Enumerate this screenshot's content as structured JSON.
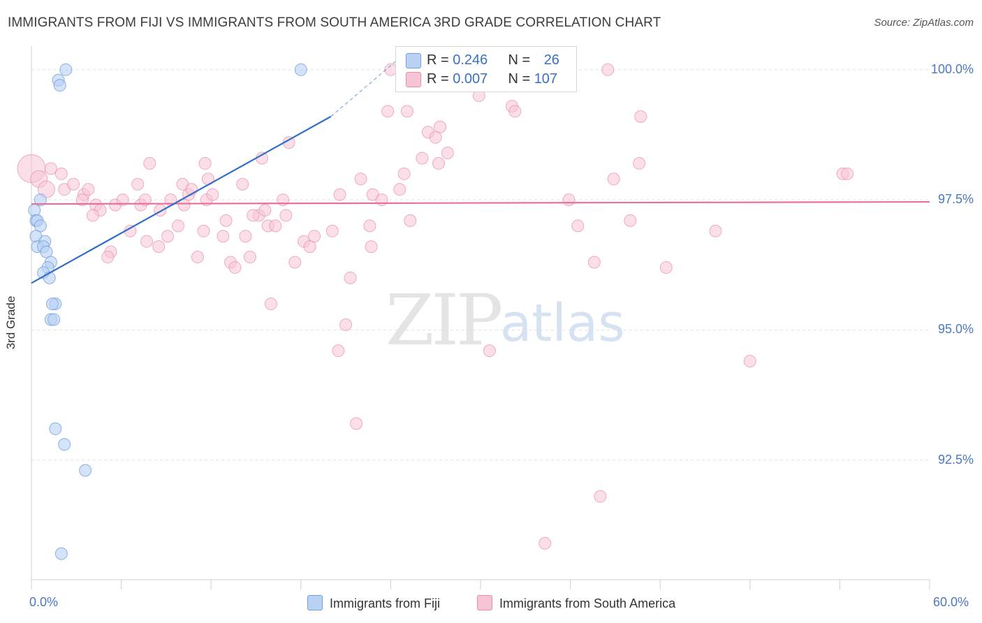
{
  "title": "IMMIGRANTS FROM FIJI VS IMMIGRANTS FROM SOUTH AMERICA 3RD GRADE CORRELATION CHART",
  "source": "Source: ZipAtlas.com",
  "watermark": {
    "zip": "ZIP",
    "atlas": "atlas"
  },
  "colors": {
    "fiji": "#6fa0e0",
    "fiji_fill": "#b9d1f3",
    "sa": "#e98cab",
    "sa_fill": "#f7c4d5",
    "fiji_line": "#2f6fc8",
    "sa_line": "#e8719c",
    "axis_text": "#4a78c2"
  },
  "legend_top": {
    "fiji": {
      "r_label": "R = ",
      "r_value": "0.246",
      "n_label": "N = ",
      "n_value": "26"
    },
    "sa": {
      "r_label": "R = ",
      "r_value": "0.007",
      "n_label": "N = ",
      "n_value": "107"
    }
  },
  "legend_bottom": {
    "fiji": "Immigrants from Fiji",
    "sa": "Immigrants from South America"
  },
  "chart_data": {
    "type": "scatter",
    "title": "IMMIGRANTS FROM FIJI VS IMMIGRANTS FROM SOUTH AMERICA 3RD GRADE CORRELATION CHART",
    "xlabel": "",
    "ylabel": "3rd Grade",
    "xlim": [
      0,
      60
    ],
    "ylim": [
      90.2,
      100.4
    ],
    "x_tick_labels": [
      "0.0%",
      "60.0%"
    ],
    "y_ticks": [
      92.5,
      95.0,
      97.5,
      100.0
    ],
    "y_tick_labels": [
      "92.5%",
      "95.0%",
      "97.5%",
      "100.0%"
    ],
    "grid": true,
    "legend_position": "top-center",
    "series": [
      {
        "name": "Immigrants from Fiji",
        "trend": {
          "x": [
            0,
            20
          ],
          "y": [
            95.9,
            99.1
          ]
        },
        "trend_dashed": {
          "x": [
            20,
            24.5
          ],
          "y": [
            99.1,
            100.2
          ]
        },
        "points": [
          [
            2.3,
            100.0
          ],
          [
            1.8,
            99.8
          ],
          [
            1.9,
            99.7
          ],
          [
            18.0,
            100.0
          ],
          [
            0.6,
            97.5
          ],
          [
            0.2,
            97.3
          ],
          [
            0.3,
            97.1
          ],
          [
            0.4,
            97.1
          ],
          [
            0.6,
            97.0
          ],
          [
            0.3,
            96.8
          ],
          [
            0.9,
            96.7
          ],
          [
            0.4,
            96.6
          ],
          [
            0.8,
            96.6
          ],
          [
            1.0,
            96.5
          ],
          [
            1.3,
            96.3
          ],
          [
            1.1,
            96.2
          ],
          [
            0.8,
            96.1
          ],
          [
            1.2,
            96.0
          ],
          [
            1.6,
            95.5
          ],
          [
            1.4,
            95.5
          ],
          [
            1.3,
            95.2
          ],
          [
            1.5,
            95.2
          ],
          [
            1.6,
            93.1
          ],
          [
            2.2,
            92.8
          ],
          [
            3.6,
            92.3
          ],
          [
            2.0,
            90.7
          ]
        ]
      },
      {
        "name": "Immigrants from South America",
        "trend": {
          "x": [
            0,
            60
          ],
          "y": [
            97.42,
            97.46
          ]
        },
        "points": [
          [
            0.0,
            98.1
          ],
          [
            0.5,
            97.9
          ],
          [
            1.0,
            97.7
          ],
          [
            1.3,
            98.1
          ],
          [
            2.0,
            98.0
          ],
          [
            2.2,
            97.7
          ],
          [
            2.8,
            97.8
          ],
          [
            3.5,
            97.6
          ],
          [
            3.8,
            97.7
          ],
          [
            3.4,
            97.5
          ],
          [
            4.3,
            97.4
          ],
          [
            4.6,
            97.3
          ],
          [
            4.1,
            97.2
          ],
          [
            5.6,
            97.4
          ],
          [
            6.1,
            97.5
          ],
          [
            5.3,
            96.5
          ],
          [
            5.1,
            96.4
          ],
          [
            6.6,
            96.9
          ],
          [
            7.1,
            97.8
          ],
          [
            7.9,
            98.2
          ],
          [
            7.3,
            97.4
          ],
          [
            7.6,
            97.5
          ],
          [
            8.6,
            97.3
          ],
          [
            9.1,
            96.8
          ],
          [
            8.5,
            96.6
          ],
          [
            7.7,
            96.7
          ],
          [
            9.3,
            97.5
          ],
          [
            9.8,
            97.0
          ],
          [
            10.1,
            97.8
          ],
          [
            10.5,
            97.6
          ],
          [
            10.2,
            97.4
          ],
          [
            10.7,
            97.7
          ],
          [
            11.5,
            96.9
          ],
          [
            11.1,
            96.4
          ],
          [
            11.8,
            97.9
          ],
          [
            11.7,
            97.5
          ],
          [
            12.1,
            97.6
          ],
          [
            12.8,
            96.8
          ],
          [
            13.0,
            97.1
          ],
          [
            13.3,
            96.3
          ],
          [
            13.6,
            96.2
          ],
          [
            14.1,
            97.8
          ],
          [
            14.3,
            96.8
          ],
          [
            14.6,
            96.4
          ],
          [
            15.2,
            97.2
          ],
          [
            14.8,
            97.2
          ],
          [
            15.6,
            97.3
          ],
          [
            15.8,
            97.0
          ],
          [
            16.3,
            97.0
          ],
          [
            16.8,
            97.5
          ],
          [
            17.0,
            97.2
          ],
          [
            17.6,
            96.3
          ],
          [
            18.2,
            96.7
          ],
          [
            18.6,
            96.6
          ],
          [
            18.9,
            96.8
          ],
          [
            16.0,
            95.5
          ],
          [
            17.2,
            98.6
          ],
          [
            15.4,
            98.3
          ],
          [
            11.6,
            98.2
          ],
          [
            20.1,
            96.9
          ],
          [
            20.6,
            97.6
          ],
          [
            21.3,
            96.0
          ],
          [
            22.0,
            97.9
          ],
          [
            22.8,
            97.6
          ],
          [
            22.7,
            96.6
          ],
          [
            21.0,
            95.1
          ],
          [
            20.5,
            94.6
          ],
          [
            21.7,
            93.2
          ],
          [
            23.4,
            97.5
          ],
          [
            22.6,
            97.0
          ],
          [
            23.8,
            99.2
          ],
          [
            24.0,
            100.0
          ],
          [
            25.3,
            97.1
          ],
          [
            24.9,
            98.0
          ],
          [
            24.6,
            97.7
          ],
          [
            25.1,
            99.2
          ],
          [
            26.5,
            98.8
          ],
          [
            26.1,
            98.3
          ],
          [
            27.3,
            98.9
          ],
          [
            27.0,
            98.7
          ],
          [
            27.8,
            98.4
          ],
          [
            27.2,
            98.2
          ],
          [
            29.0,
            100.0
          ],
          [
            29.7,
            99.7
          ],
          [
            29.9,
            99.5
          ],
          [
            30.6,
            94.6
          ],
          [
            29.3,
            99.9
          ],
          [
            31.7,
            99.7
          ],
          [
            32.5,
            99.9
          ],
          [
            32.1,
            99.3
          ],
          [
            32.3,
            99.2
          ],
          [
            34.1,
            100.0
          ],
          [
            34.5,
            99.8
          ],
          [
            36.5,
            97.0
          ],
          [
            37.6,
            96.3
          ],
          [
            38.5,
            100.0
          ],
          [
            40.0,
            97.1
          ],
          [
            40.7,
            99.1
          ],
          [
            40.6,
            98.2
          ],
          [
            38.9,
            97.9
          ],
          [
            35.9,
            97.5
          ],
          [
            42.4,
            96.2
          ],
          [
            45.7,
            96.9
          ],
          [
            48.0,
            94.4
          ],
          [
            54.2,
            98.0
          ],
          [
            54.5,
            98.0
          ],
          [
            38.0,
            91.8
          ],
          [
            34.3,
            90.9
          ]
        ]
      }
    ]
  }
}
